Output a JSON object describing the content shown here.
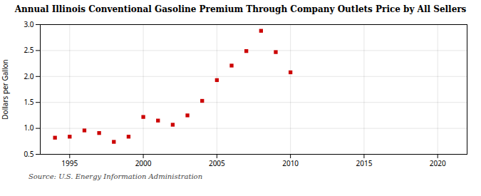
{
  "chart_data": {
    "type": "scatter",
    "title": "Annual Illinois Conventional Gasoline Premium Through Company Outlets Price by All Sellers",
    "ylabel": "Dollars per Gallon",
    "annotations": [
      "Source: U.S. Energy Information Administration"
    ],
    "x": [
      1994,
      1995,
      1996,
      1997,
      1998,
      1999,
      2000,
      2001,
      2002,
      2003,
      2004,
      2005,
      2006,
      2007,
      2008,
      2009,
      2010
    ],
    "values": [
      0.82,
      0.84,
      0.96,
      0.91,
      0.74,
      0.84,
      1.22,
      1.15,
      1.07,
      1.25,
      1.53,
      1.93,
      2.21,
      2.49,
      2.88,
      2.47,
      2.08
    ],
    "color": "#cc0000",
    "marker": "square",
    "xlim": [
      1993,
      2022
    ],
    "ylim": [
      0.5,
      3.0
    ],
    "xticks": [
      1995,
      2000,
      2005,
      2010,
      2015,
      2020
    ],
    "yticks": [
      0.5,
      {
        "value": 1,
        "label": "1.0"
      },
      1.5,
      {
        "value": 2,
        "label": "2.0"
      },
      2.5,
      {
        "value": 3,
        "label": "3.0"
      }
    ],
    "grid": true
  }
}
